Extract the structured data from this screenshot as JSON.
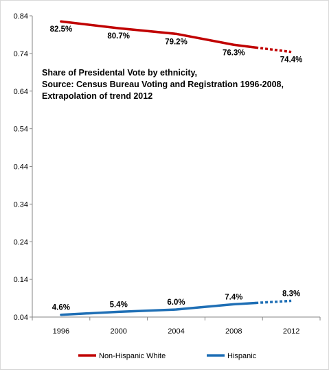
{
  "chart_data": {
    "type": "line",
    "categories": [
      "1996",
      "2000",
      "2004",
      "2008",
      "2012"
    ],
    "ylim": [
      0.04,
      0.84
    ],
    "yticks": [
      "0.84",
      "0.74",
      "0.64",
      "0.54",
      "0.44",
      "0.34",
      "0.24",
      "0.14",
      "0.04"
    ],
    "annotation_lines": [
      "Share of Presidental Vote by ethnicity,",
      "Source: Census Bureau Voting and Registration 1996-2008,",
      "Extrapolation of trend 2012"
    ],
    "series": [
      {
        "name": "Non-Hispanic White",
        "color": "#c00000",
        "values": [
          0.825,
          0.807,
          0.792,
          0.763,
          0.744
        ],
        "labels": [
          "82.5%",
          "80.7%",
          "79.2%",
          "76.3%",
          "74.4%"
        ],
        "dashed_from": 3
      },
      {
        "name": "Hispanic",
        "color": "#1f6fb5",
        "values": [
          0.046,
          0.054,
          0.06,
          0.074,
          0.083
        ],
        "labels": [
          "4.6%",
          "5.4%",
          "6.0%",
          "7.4%",
          "8.3%"
        ],
        "dashed_from": 3
      }
    ],
    "legend_position": "bottom",
    "grid": false
  }
}
